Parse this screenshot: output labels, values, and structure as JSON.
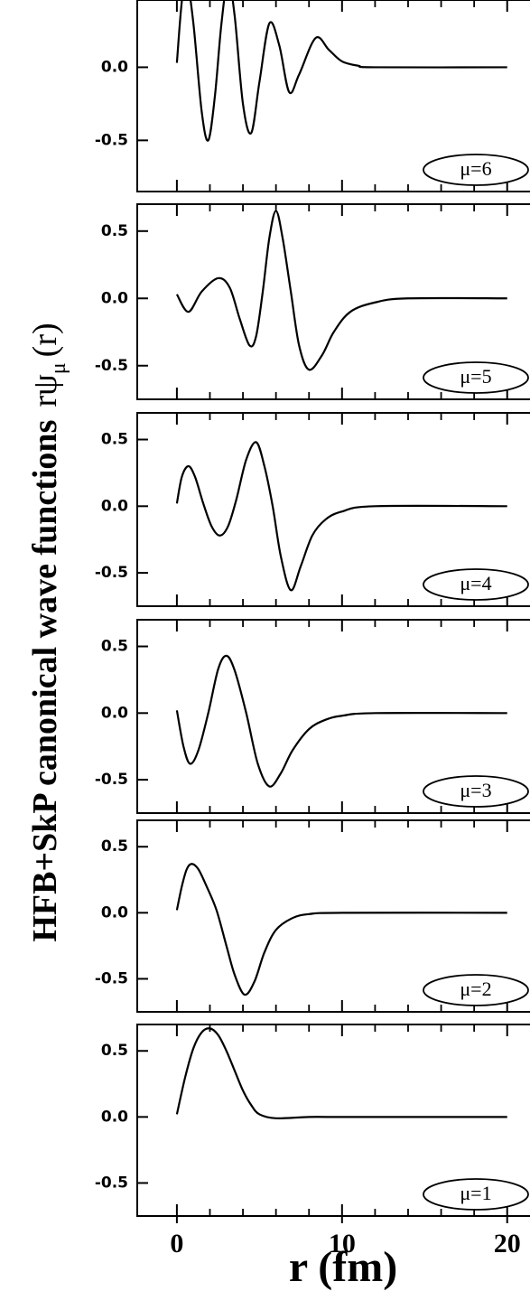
{
  "xlabel": "r (fm)",
  "ylabel": {
    "text": "HFB+SkP canonical wave functions",
    "symbol": "rψ",
    "subscript": "μ",
    "arg": "(r)"
  },
  "chart_data": [
    {
      "type": "line",
      "label": "μ=6",
      "x": [
        0,
        0.3,
        0.6,
        1.0,
        1.5,
        1.9,
        2.3,
        2.7,
        3.1,
        3.5,
        4.0,
        4.5,
        5.0,
        5.6,
        6.2,
        6.8,
        7.4,
        8.4,
        9.2,
        10,
        11,
        12,
        20
      ],
      "series": [
        {
          "color": "#000000",
          "values": [
            0.03,
            0.45,
            0.6,
            0.3,
            -0.3,
            -0.5,
            -0.2,
            0.3,
            0.6,
            0.35,
            -0.25,
            -0.45,
            -0.1,
            0.3,
            0.15,
            -0.17,
            -0.05,
            0.2,
            0.12,
            0.04,
            0.01,
            0,
            0
          ]
        }
      ],
      "xlim": [
        -2.4,
        21.6
      ],
      "xticks": [
        0,
        10,
        20
      ],
      "xticks_minor": [
        2,
        4,
        6,
        8,
        12,
        14,
        16,
        18
      ],
      "ylim": [
        -0.85,
        0.46
      ],
      "yticks": [
        {
          "value": -0.5,
          "label": "-0.5"
        },
        {
          "value": 0,
          "label": "0.0"
        }
      ]
    },
    {
      "type": "line",
      "label": "μ=5",
      "x": [
        0,
        0.7,
        1.5,
        2.5,
        3.2,
        3.8,
        4.4,
        4.8,
        5.2,
        5.6,
        6.0,
        6.4,
        6.9,
        7.4,
        8.0,
        8.8,
        9.5,
        10.5,
        12,
        14,
        20
      ],
      "series": [
        {
          "color": "#000000",
          "values": [
            0.03,
            -0.1,
            0.05,
            0.15,
            0.08,
            -0.15,
            -0.35,
            -0.28,
            0.05,
            0.45,
            0.65,
            0.45,
            0.05,
            -0.35,
            -0.53,
            -0.42,
            -0.25,
            -0.1,
            -0.03,
            0,
            0
          ]
        }
      ],
      "xlim": [
        -2.4,
        21.6
      ],
      "xticks": [
        0,
        10,
        20
      ],
      "xticks_minor": [
        2,
        4,
        6,
        8,
        12,
        14,
        16,
        18
      ],
      "ylim": [
        -0.75,
        0.7
      ],
      "yticks": [
        {
          "value": -0.5,
          "label": "-0.5"
        },
        {
          "value": 0,
          "label": "0.0"
        },
        {
          "value": 0.5,
          "label": "0.5"
        }
      ]
    },
    {
      "type": "line",
      "label": "μ=4",
      "x": [
        0,
        0.3,
        0.7,
        1.1,
        1.6,
        2.1,
        2.6,
        3.1,
        3.6,
        4.2,
        4.8,
        5.3,
        5.8,
        6.3,
        6.9,
        7.5,
        8.2,
        9,
        10,
        12,
        20
      ],
      "series": [
        {
          "color": "#000000",
          "values": [
            0.02,
            0.22,
            0.3,
            0.22,
            0.02,
            -0.15,
            -0.22,
            -0.15,
            0.05,
            0.35,
            0.48,
            0.3,
            0.0,
            -0.38,
            -0.63,
            -0.45,
            -0.22,
            -0.1,
            -0.04,
            0,
            0
          ]
        }
      ],
      "xlim": [
        -2.4,
        21.6
      ],
      "xticks": [
        0,
        10,
        20
      ],
      "xticks_minor": [
        2,
        4,
        6,
        8,
        12,
        14,
        16,
        18
      ],
      "ylim": [
        -0.75,
        0.7
      ],
      "yticks": [
        {
          "value": -0.5,
          "label": "-0.5"
        },
        {
          "value": 0,
          "label": "0.0"
        },
        {
          "value": 0.5,
          "label": "0.5"
        }
      ]
    },
    {
      "type": "line",
      "label": "μ=3",
      "x": [
        0,
        0.4,
        0.8,
        1.3,
        1.9,
        2.5,
        3,
        3.5,
        4.2,
        4.9,
        5.6,
        6.3,
        7,
        8,
        9,
        10,
        12,
        20
      ],
      "series": [
        {
          "color": "#000000",
          "values": [
            0.02,
            -0.25,
            -0.38,
            -0.28,
            0,
            0.33,
            0.43,
            0.32,
            0,
            -0.38,
            -0.55,
            -0.45,
            -0.28,
            -0.12,
            -0.05,
            -0.02,
            0,
            0
          ]
        }
      ],
      "xlim": [
        -2.4,
        21.6
      ],
      "xticks": [
        0,
        10,
        20
      ],
      "xticks_minor": [
        2,
        4,
        6,
        8,
        12,
        14,
        16,
        18
      ],
      "ylim": [
        -0.75,
        0.7
      ],
      "yticks": [
        {
          "value": -0.5,
          "label": "-0.5"
        },
        {
          "value": 0,
          "label": "0.0"
        },
        {
          "value": 0.5,
          "label": "0.5"
        }
      ]
    },
    {
      "type": "line",
      "label": "μ=2",
      "x": [
        0,
        0.3,
        0.6,
        0.9,
        1.3,
        1.8,
        2.4,
        3,
        3.5,
        4.1,
        4.7,
        5.3,
        6,
        7,
        8,
        10,
        20
      ],
      "series": [
        {
          "color": "#000000",
          "values": [
            0.02,
            0.2,
            0.33,
            0.37,
            0.33,
            0.2,
            0.02,
            -0.25,
            -0.47,
            -0.62,
            -0.52,
            -0.3,
            -0.13,
            -0.04,
            -0.01,
            0,
            0
          ]
        }
      ],
      "xlim": [
        -2.4,
        21.6
      ],
      "xticks": [
        0,
        10,
        20
      ],
      "xticks_minor": [
        2,
        4,
        6,
        8,
        12,
        14,
        16,
        18
      ],
      "ylim": [
        -0.75,
        0.7
      ],
      "yticks": [
        {
          "value": -0.5,
          "label": "-0.5"
        },
        {
          "value": 0,
          "label": "0.0"
        },
        {
          "value": 0.5,
          "label": "0.5"
        }
      ]
    },
    {
      "type": "line",
      "label": "μ=1",
      "x": [
        0,
        0.5,
        1,
        1.5,
        2,
        2.5,
        3,
        3.5,
        4,
        4.5,
        5,
        6,
        8,
        10,
        20
      ],
      "series": [
        {
          "color": "#000000",
          "values": [
            0.02,
            0.3,
            0.52,
            0.64,
            0.67,
            0.62,
            0.5,
            0.35,
            0.2,
            0.09,
            0.02,
            -0.01,
            0,
            0,
            0
          ]
        }
      ],
      "xlim": [
        -2.4,
        21.6
      ],
      "xticks": [
        0,
        10,
        20
      ],
      "xticks_minor": [
        2,
        4,
        6,
        8,
        12,
        14,
        16,
        18
      ],
      "ylim": [
        -0.75,
        0.7
      ],
      "yticks": [
        {
          "value": -0.5,
          "label": "-0.5"
        },
        {
          "value": 0,
          "label": "0.0"
        },
        {
          "value": 0.5,
          "label": "0.5"
        }
      ]
    }
  ]
}
